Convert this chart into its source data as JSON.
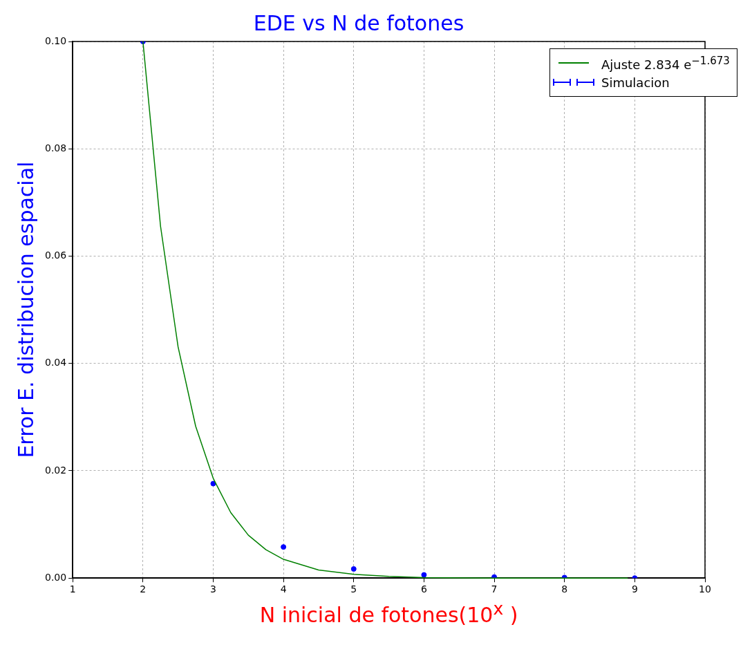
{
  "chart_data": {
    "type": "scatter",
    "title": "EDE vs N de fotones",
    "xlabel": "N inicial de fotones(10$^{x}$ )",
    "ylabel": "Error E. distribucion espacial",
    "xlim": [
      1,
      10
    ],
    "ylim": [
      0,
      0.1
    ],
    "xticks": [
      1,
      2,
      3,
      4,
      5,
      6,
      7,
      8,
      9,
      10
    ],
    "yticks": [
      {
        "value": 0,
        "label": "0.00"
      },
      {
        "value": 0.02,
        "label": "0.02"
      },
      {
        "value": 0.04,
        "label": "0.04"
      },
      {
        "value": 0.06,
        "label": "0.06"
      },
      {
        "value": 0.08,
        "label": "0.08"
      },
      {
        "value": 0.1,
        "label": "0.10"
      }
    ],
    "grid": true,
    "legend": "top right",
    "marker": "circle",
    "series": [
      {
        "name": "Ajuste 2.834 e$^{−1.673}$",
        "type": "line",
        "color": "#008000",
        "marker": "none",
        "line_style": "solid",
        "x": [
          2,
          2.25,
          2.5,
          2.75,
          3,
          3.25,
          3.5,
          3.75,
          4,
          4.5,
          5,
          5.5,
          6,
          7,
          8.9
        ],
        "values": [
          0.1,
          0.0656,
          0.0431,
          0.0283,
          0.0186,
          0.0122,
          0.008,
          0.0053,
          0.0035,
          0.0015,
          0.0007,
          0.0003,
          0.0001,
          0,
          0
        ]
      },
      {
        "name": "Simulacion",
        "type": "scatter",
        "color": "#0000ff",
        "x": [
          2,
          3,
          4,
          5,
          6,
          7,
          8,
          9
        ],
        "values": [
          0.1,
          0.0176,
          0.0058,
          0.0017,
          0.0006,
          0.0002,
          0.0001,
          0
        ]
      }
    ]
  }
}
